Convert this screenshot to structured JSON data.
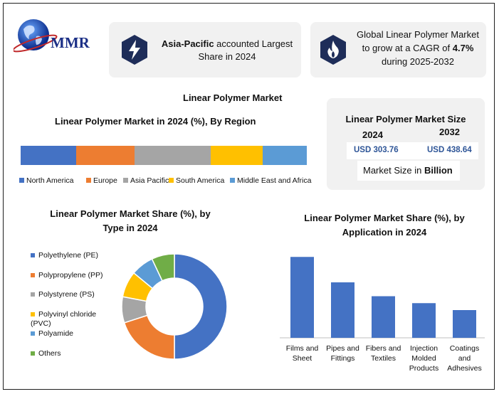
{
  "brand": {
    "logo_text": "MMR"
  },
  "cards": {
    "asia": {
      "strong": "Asia-Pacific",
      "rest": " accounted Largest Share in 2024"
    },
    "growth": {
      "line1": "Global Linear Polymer Market to grow at a CAGR of",
      "cagr": "4.7%",
      "rest": " during 2025-2032"
    }
  },
  "main_title": "Linear Polymer Market",
  "size_box": {
    "title": "Linear Polymer Market Size",
    "year1": "2024",
    "year2": "2032",
    "value1": "USD 303.76",
    "value2": "USD 438.64",
    "note_prefix": "Market Size in ",
    "note_unit": "Billion"
  },
  "colors": {
    "blue": "#4472c4",
    "orange": "#ed7d31",
    "gray": "#a5a5a5",
    "yellow": "#ffc000",
    "lightblue": "#5b9bd5",
    "green": "#70ad47",
    "value_blue": "#2e5597"
  },
  "chart_data": [
    {
      "type": "bar",
      "orientation": "horizontal-stacked",
      "title": "Linear Polymer Market in 2024 (%), By Region",
      "series": [
        {
          "name": "North America",
          "value": 19
        },
        {
          "name": "Europe",
          "value": 20
        },
        {
          "name": "Asia Pacific",
          "value": 26
        },
        {
          "name": "South America",
          "value": 18
        },
        {
          "name": "Middle East and Africa",
          "value": 15
        }
      ],
      "legend": "bottom"
    },
    {
      "type": "pie",
      "title_line1": "Linear Polymer Market Share (%), by",
      "title_line2": "Type in 2024",
      "slices": [
        {
          "name": "Polyethylene (PE)",
          "value": 50
        },
        {
          "name": "Polypropylene (PP)",
          "value": 20
        },
        {
          "name": "Polystyrene (PS)",
          "value": 8
        },
        {
          "name": "Polyvinyl chloride (PVC)",
          "value": 8
        },
        {
          "name": "Polyamide",
          "value": 7
        },
        {
          "name": "Others",
          "value": 7
        }
      ],
      "legend": "left"
    },
    {
      "type": "bar",
      "title_line1": "Linear Polymer Market Share (%), by",
      "title_line2": "Application  in 2024",
      "categories": [
        "Films and Sheet",
        "Pipes and Fittings",
        "Fibers and Textiles",
        "Injection Molded Products",
        "Coatings and Adhesives"
      ],
      "values": [
        35,
        24,
        18,
        15,
        12
      ],
      "ylim": [
        0,
        40
      ]
    }
  ]
}
